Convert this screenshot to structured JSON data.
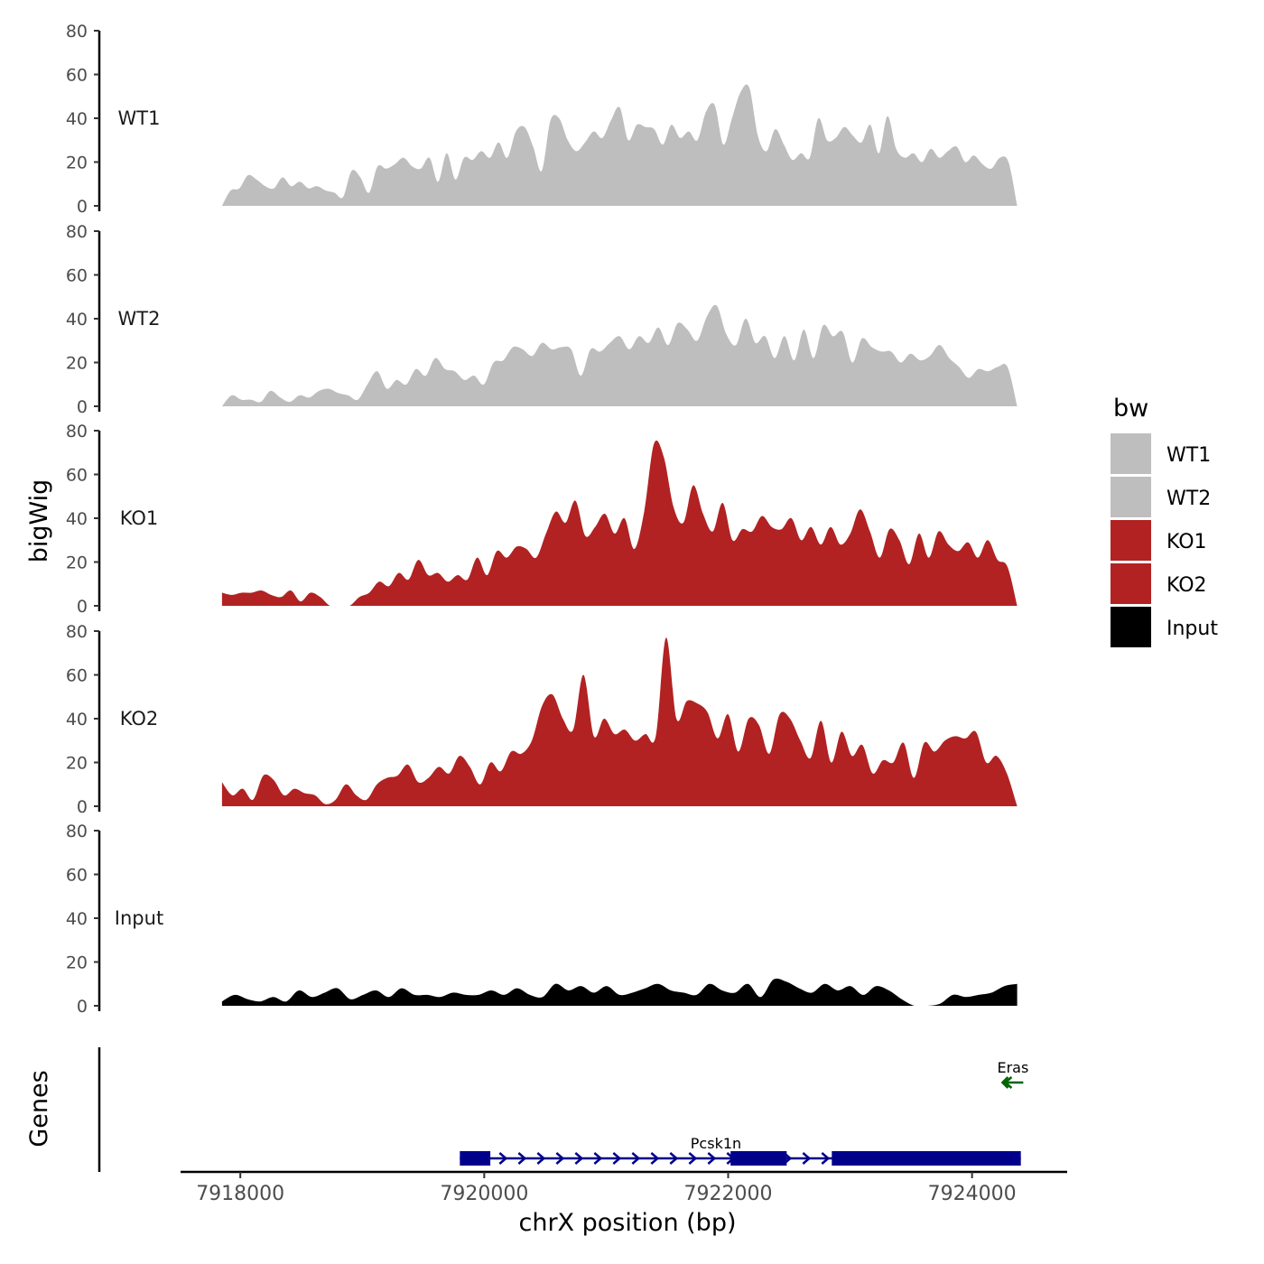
{
  "chart_data": {
    "type": "area",
    "ylabel": "bigWig",
    "gene_panel_label": "Genes",
    "xlabel": "chrX position (bp)",
    "chromosome": "chrX",
    "xlim": [
      7917510,
      7924780
    ],
    "x_ticks": [
      7918000,
      7920000,
      7922000,
      7924000
    ],
    "x_tick_labels": [
      "7918000",
      "7920000",
      "7922000",
      "7924000"
    ],
    "ylim": [
      0,
      80
    ],
    "y_ticks": [
      0,
      20,
      40,
      60,
      80
    ],
    "y_tick_labels": [
      "0",
      "20",
      "40",
      "60",
      "80"
    ],
    "legend": {
      "title": "bw",
      "position": "right",
      "entries": [
        {
          "label": "WT1",
          "color": "#bebebe"
        },
        {
          "label": "WT2",
          "color": "#bebebe"
        },
        {
          "label": "KO1",
          "color": "#b22222"
        },
        {
          "label": "KO2",
          "color": "#b22222"
        },
        {
          "label": "Input",
          "color": "#000000"
        }
      ]
    },
    "series": [
      {
        "name": "WT1",
        "color": "#bebebe",
        "x_start": 7917850,
        "x_end": 7924370,
        "values": [
          0,
          7,
          8,
          14,
          12,
          9,
          8,
          13,
          9,
          11,
          8,
          9,
          7,
          6,
          4,
          16,
          13,
          6,
          18,
          17,
          19,
          22,
          18,
          17,
          22,
          11,
          24,
          12,
          22,
          21,
          25,
          22,
          29,
          22,
          34,
          36,
          27,
          16,
          39,
          40,
          30,
          25,
          29,
          34,
          31,
          39,
          45,
          30,
          37,
          36,
          35,
          28,
          37,
          31,
          34,
          30,
          43,
          46,
          28,
          40,
          52,
          54,
          32,
          25,
          35,
          28,
          21,
          24,
          22,
          40,
          30,
          31,
          36,
          32,
          29,
          37,
          24,
          41,
          26,
          22,
          24,
          20,
          26,
          22,
          25,
          27,
          20,
          23,
          19,
          17,
          22,
          20,
          0
        ]
      },
      {
        "name": "WT2",
        "color": "#bebebe",
        "x_start": 7917850,
        "x_end": 7924370,
        "values": [
          0,
          5,
          3,
          3,
          2,
          7,
          4,
          2,
          5,
          4,
          7,
          8,
          6,
          5,
          3,
          10,
          16,
          8,
          12,
          10,
          17,
          14,
          22,
          17,
          16,
          12,
          14,
          10,
          20,
          21,
          27,
          26,
          23,
          29,
          26,
          27,
          26,
          14,
          26,
          25,
          29,
          32,
          26,
          32,
          29,
          36,
          28,
          38,
          35,
          30,
          41,
          46,
          33,
          28,
          40,
          29,
          32,
          22,
          32,
          21,
          35,
          22,
          37,
          32,
          34,
          20,
          31,
          27,
          25,
          25,
          20,
          24,
          21,
          23,
          28,
          22,
          18,
          13,
          17,
          16,
          18,
          18,
          0
        ]
      },
      {
        "name": "KO1",
        "color": "#b22222",
        "x_start": 7917850,
        "x_end": 7924370,
        "values": [
          6,
          5,
          6,
          6,
          7,
          5,
          4,
          7,
          2,
          6,
          4,
          0,
          0,
          0,
          4,
          6,
          11,
          9,
          15,
          12,
          21,
          14,
          15,
          11,
          14,
          12,
          22,
          14,
          25,
          22,
          27,
          26,
          22,
          33,
          43,
          38,
          48,
          32,
          36,
          42,
          33,
          40,
          26,
          43,
          74,
          68,
          45,
          38,
          55,
          42,
          34,
          47,
          30,
          35,
          34,
          41,
          36,
          35,
          40,
          30,
          36,
          28,
          36,
          28,
          33,
          44,
          34,
          22,
          35,
          30,
          19,
          33,
          22,
          34,
          28,
          25,
          29,
          22,
          30,
          21,
          18,
          0
        ]
      },
      {
        "name": "KO2",
        "color": "#b22222",
        "x_start": 7917850,
        "x_end": 7924370,
        "values": [
          11,
          5,
          8,
          3,
          14,
          12,
          5,
          8,
          6,
          5,
          1,
          3,
          10,
          5,
          3,
          10,
          13,
          14,
          19,
          11,
          13,
          18,
          15,
          23,
          18,
          10,
          20,
          16,
          25,
          24,
          30,
          46,
          51,
          40,
          35,
          60,
          32,
          40,
          33,
          35,
          30,
          33,
          32,
          77,
          40,
          48,
          47,
          43,
          31,
          42,
          25,
          40,
          37,
          24,
          42,
          40,
          30,
          22,
          39,
          20,
          34,
          23,
          28,
          15,
          21,
          20,
          29,
          13,
          29,
          25,
          30,
          32,
          31,
          34,
          20,
          23,
          15,
          0
        ]
      },
      {
        "name": "Input",
        "color": "#000000",
        "x_start": 7917850,
        "x_end": 7924370,
        "values": [
          2,
          5,
          3,
          2,
          4,
          2,
          7,
          4,
          6,
          8,
          3,
          5,
          7,
          4,
          8,
          5,
          5,
          4,
          6,
          5,
          5,
          7,
          5,
          8,
          5,
          4,
          10,
          7,
          9,
          6,
          9,
          5,
          6,
          8,
          10,
          7,
          6,
          5,
          10,
          7,
          6,
          10,
          4,
          12,
          11,
          8,
          6,
          10,
          7,
          9,
          5,
          9,
          7,
          3,
          0,
          0,
          1,
          5,
          4,
          5,
          6,
          9,
          10
        ]
      }
    ],
    "genes": [
      {
        "name": "Pcsk1n",
        "strand": "+",
        "color": "#00008b",
        "start": 7919800,
        "end": 7924400,
        "exons": [
          [
            7919800,
            7920050
          ],
          [
            7922020,
            7922480
          ],
          [
            7922850,
            7924400
          ]
        ]
      },
      {
        "name": "Eras",
        "strand": "-",
        "color": "#006400",
        "start": 7924250,
        "end": 7924420,
        "exons": []
      }
    ]
  }
}
